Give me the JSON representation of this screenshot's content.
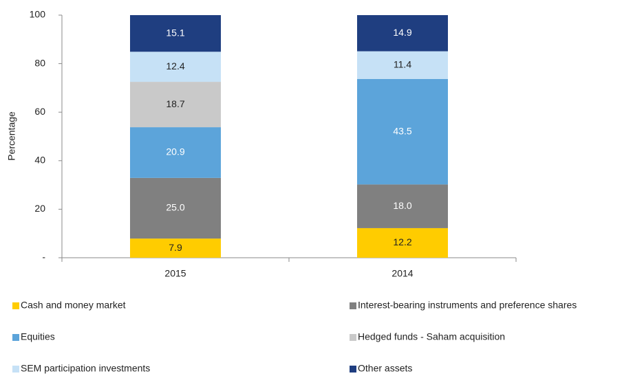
{
  "chart_data": {
    "type": "stacked_bar",
    "ylabel": "Percentage",
    "categories": [
      "2015",
      "2014"
    ],
    "series": [
      {
        "name": "Cash and money market",
        "color": "#ffcc00",
        "values": [
          7.9,
          12.2
        ]
      },
      {
        "name": "Interest-bearing instruments and preference shares",
        "color": "#808080",
        "values": [
          25,
          18
        ],
        "value_labels": [
          "25.0",
          "18.0"
        ]
      },
      {
        "name": "Equities",
        "color": "#5ca4da",
        "values": [
          20.9,
          43.5
        ]
      },
      {
        "name": "Hedged funds - Saham acquisition",
        "color": "#c9c9c9",
        "values": [
          18.7,
          null
        ]
      },
      {
        "name": "SEM participation investments",
        "color": "#c6e1f6",
        "values": [
          12.4,
          11.4
        ]
      },
      {
        "name": "Other assets",
        "color": "#1f3e80",
        "values": [
          15.1,
          14.9
        ]
      }
    ],
    "ylim": [
      0,
      100
    ],
    "yticks": [
      {
        "value": 0,
        "label": "-"
      },
      20,
      40,
      60,
      80,
      100
    ],
    "legend": "bottom"
  }
}
